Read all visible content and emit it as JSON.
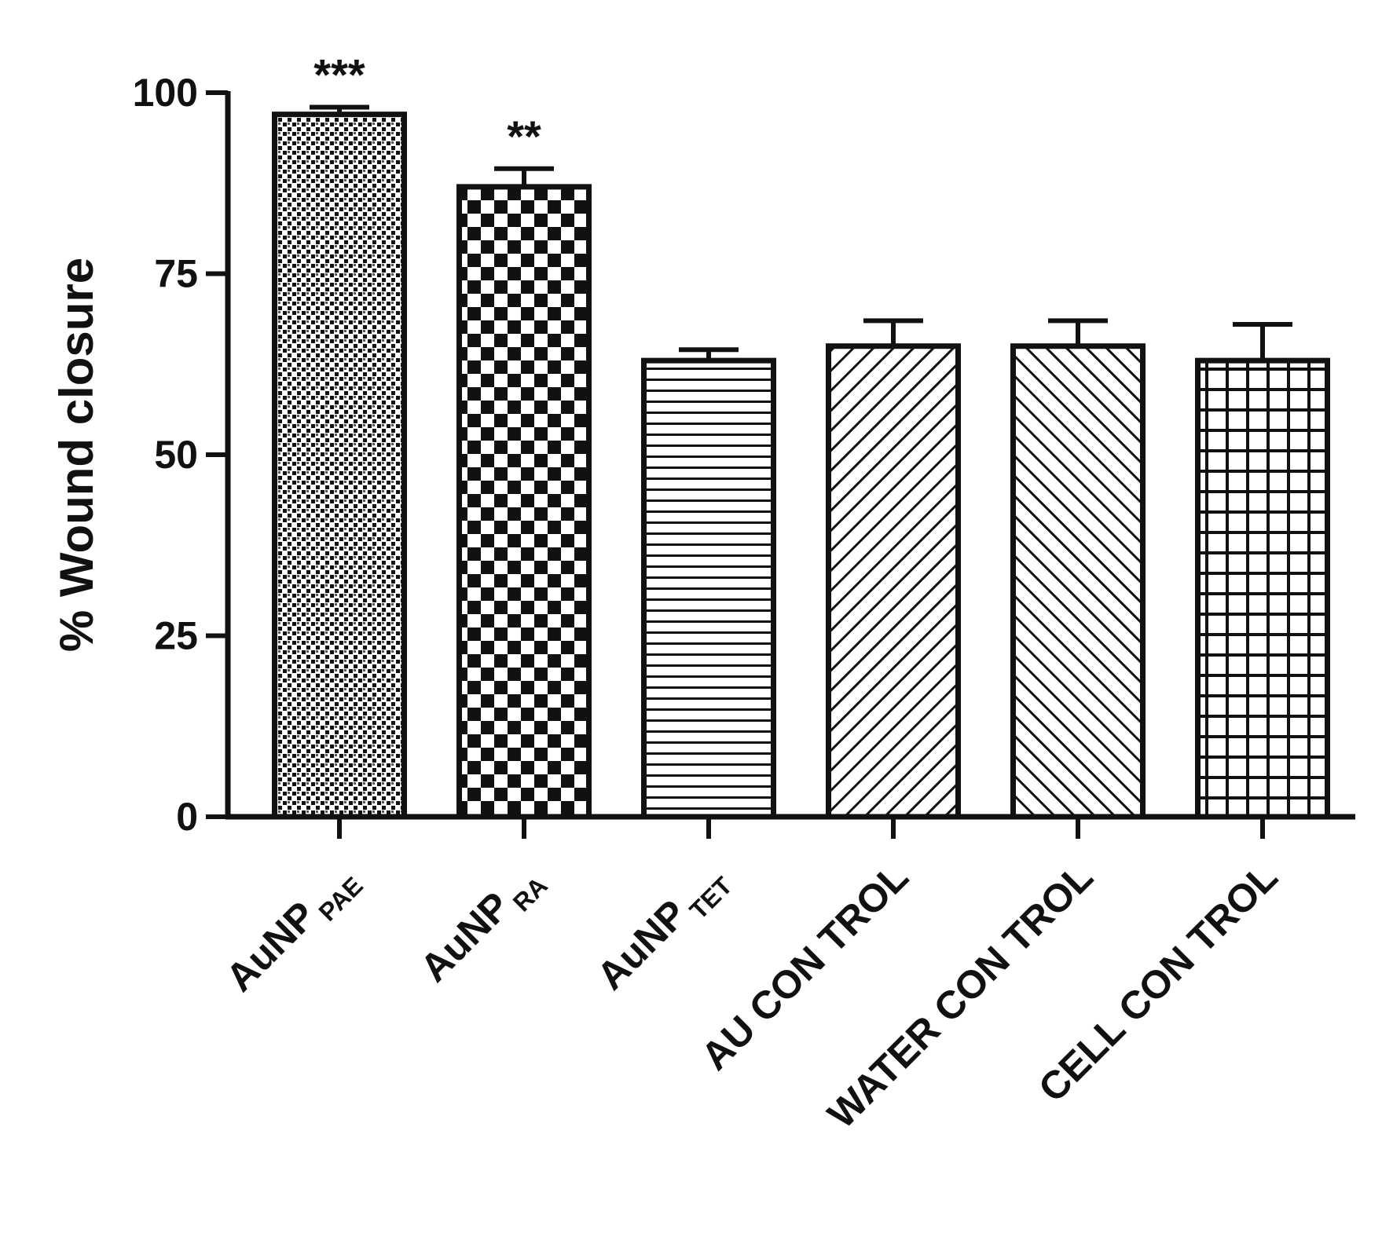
{
  "chart_data": {
    "type": "bar",
    "title": "",
    "xlabel": "",
    "ylabel": "% Wound closure",
    "ylim": [
      0,
      100
    ],
    "yticks": [
      0,
      25,
      50,
      75,
      100
    ],
    "grid": false,
    "categories": [
      {
        "main": "AuNP",
        "sub": "PAE"
      },
      {
        "main": "AuNP",
        "sub": "RA"
      },
      {
        "main": "AuNP",
        "sub": "TET"
      },
      {
        "main": "AU CON TROL",
        "sub": ""
      },
      {
        "main": "WATER CON TROL",
        "sub": ""
      },
      {
        "main": "CELL CON TROL",
        "sub": ""
      }
    ],
    "series": [
      {
        "values": [
          97,
          87,
          63,
          65,
          65,
          63
        ],
        "errors": [
          1,
          2.5,
          1.5,
          3.5,
          3.5,
          5
        ]
      }
    ],
    "significance": [
      "***",
      "**",
      "",
      "",
      "",
      ""
    ],
    "bar_fill": [
      "dense-dots",
      "checkerboard",
      "horizontal-lines",
      "diagonal-forward",
      "diagonal-back",
      "grid"
    ],
    "colors": {
      "ink": "#111111",
      "background": "#ffffff"
    }
  }
}
